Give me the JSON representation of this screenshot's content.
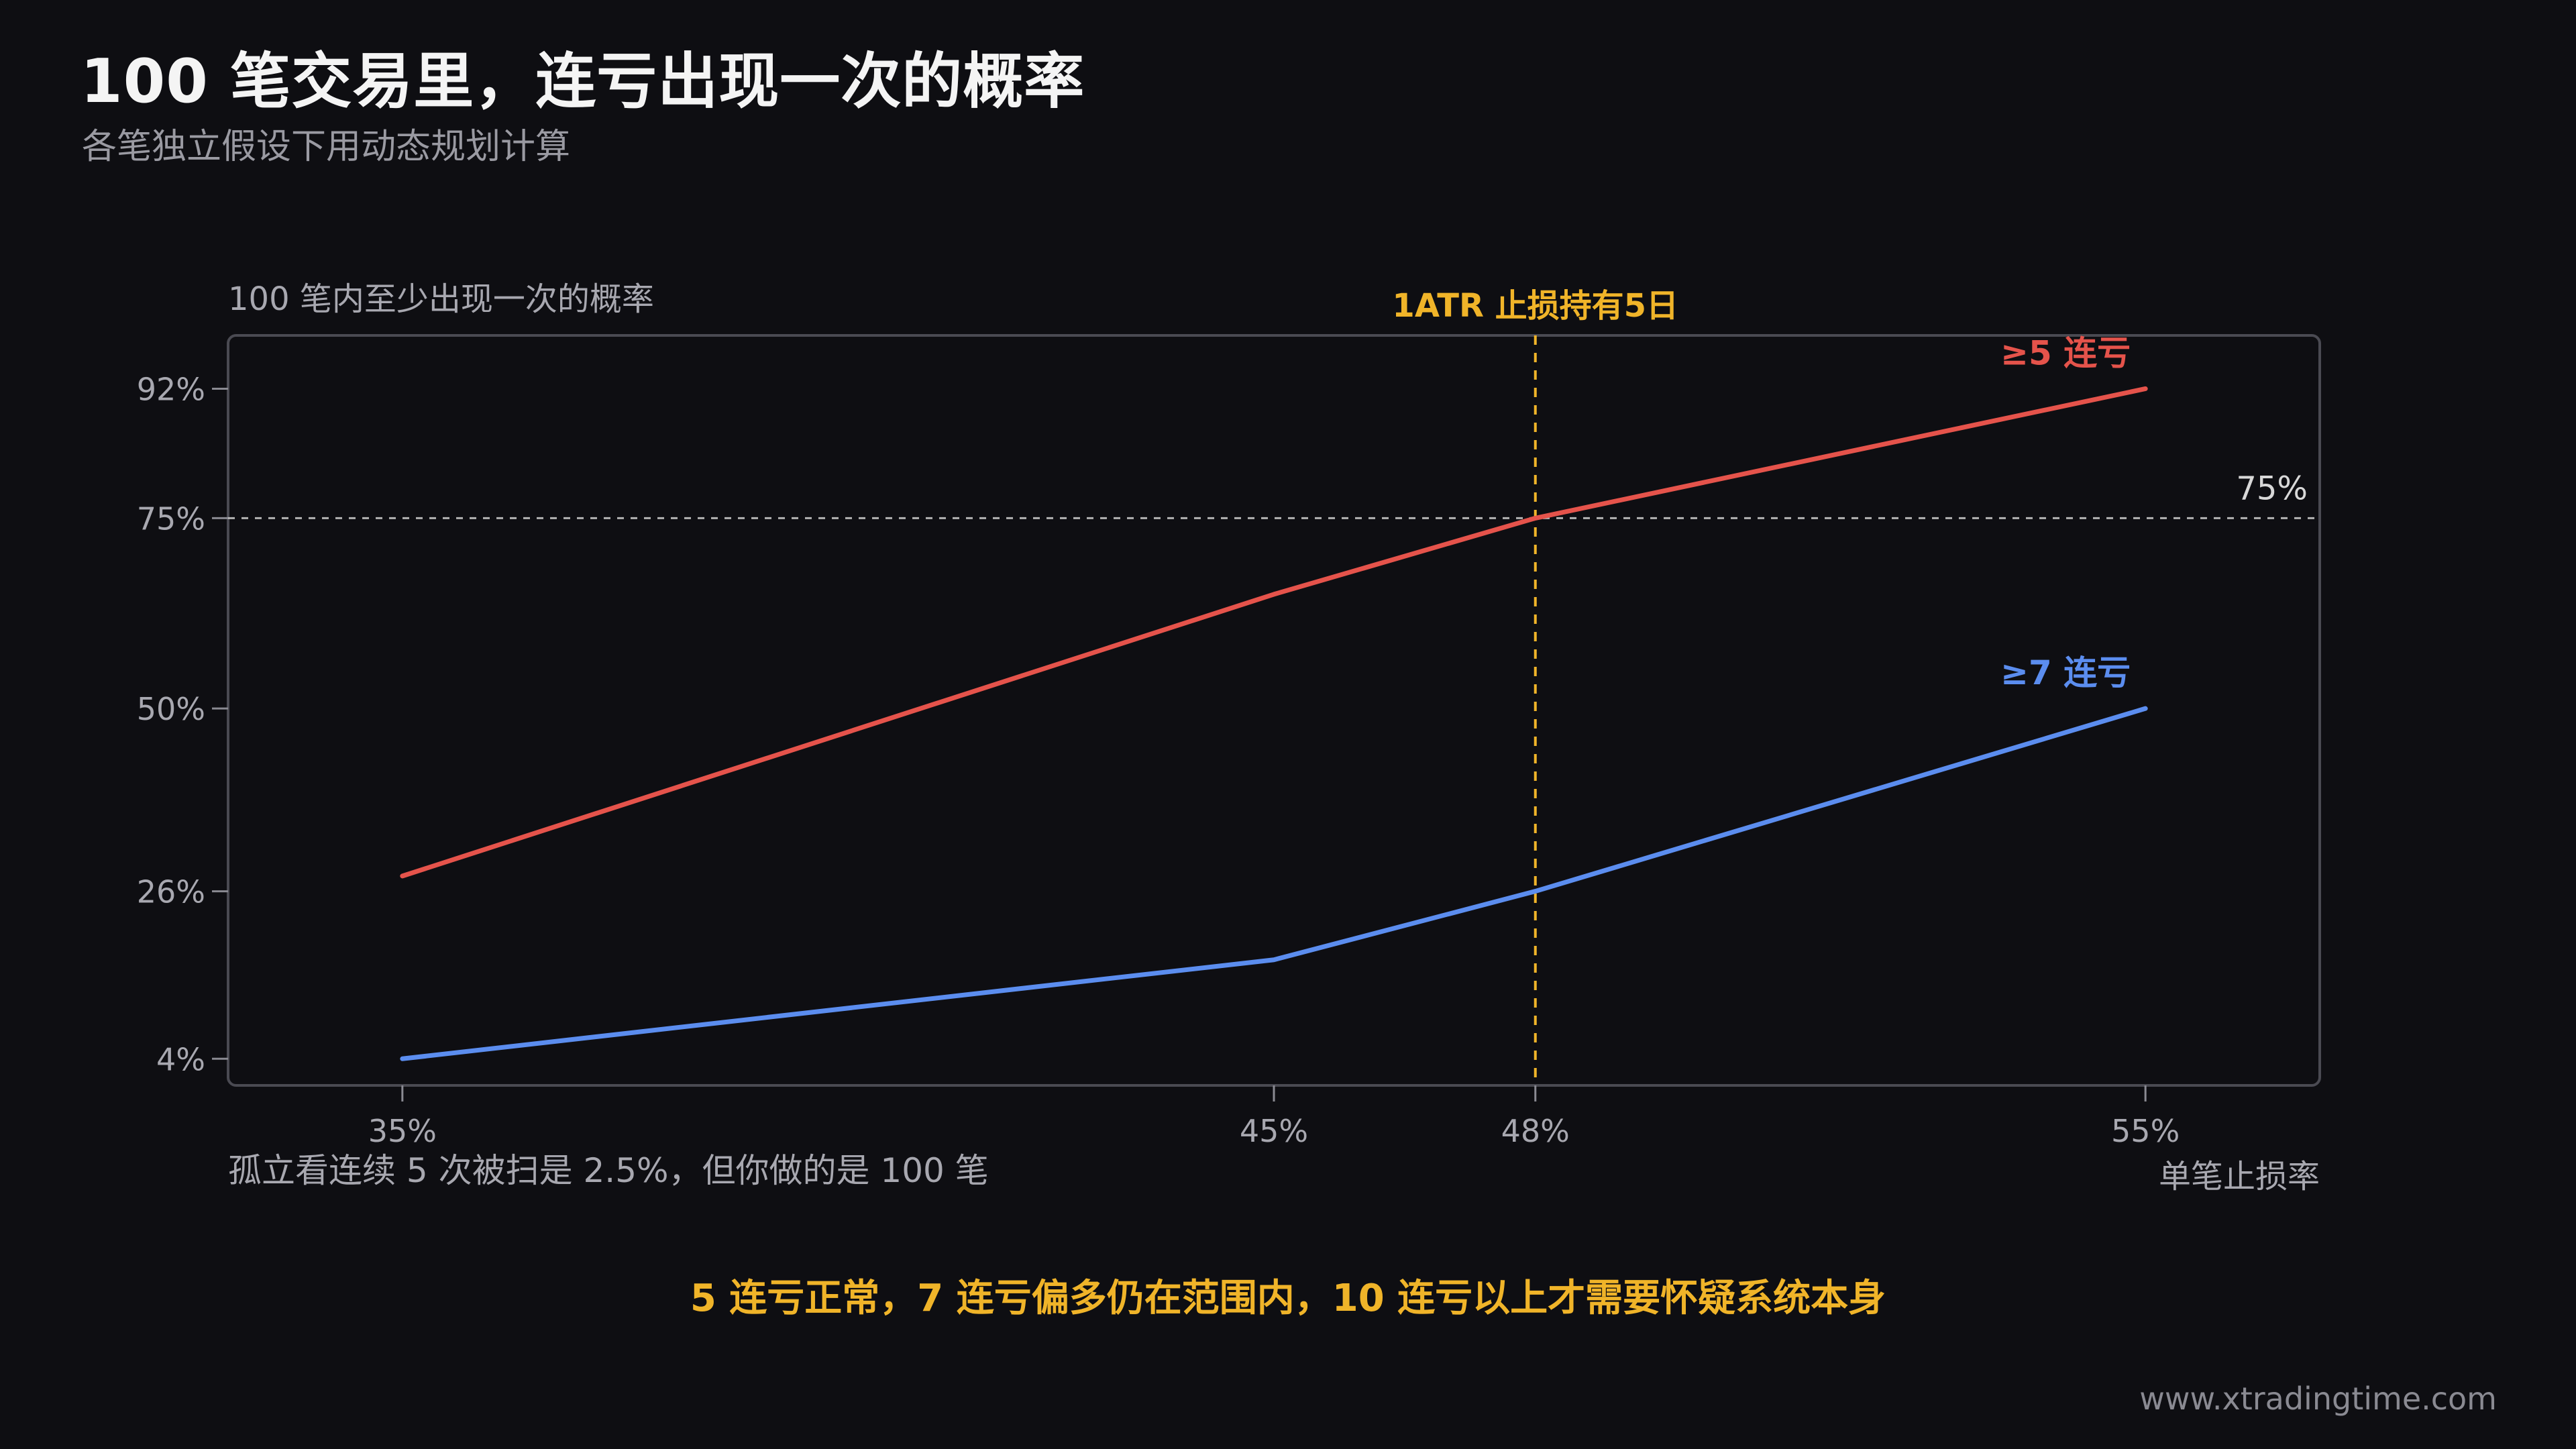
{
  "title": "100 笔交易里，连亏出现一次的概率",
  "subtitle": "各笔独立假设下用动态规划计算",
  "chart_data": {
    "type": "line",
    "ylabel": "100 笔内至少出现一次的概率",
    "xlabel": "单笔止损率",
    "x": [
      35,
      45,
      48,
      55
    ],
    "xticks": [
      "35%",
      "45%",
      "48%",
      "55%"
    ],
    "yticks": [
      4,
      26,
      50,
      75,
      92
    ],
    "ytick_labels": [
      "4%",
      "26%",
      "50%",
      "75%",
      "92%"
    ],
    "xlim": [
      33,
      57
    ],
    "ylim": [
      0.5,
      99
    ],
    "series": [
      {
        "name": "≥5 连亏",
        "values": [
          28,
          65,
          75,
          92
        ],
        "color": "#e5534b"
      },
      {
        "name": "≥7 连亏",
        "values": [
          4,
          17,
          26,
          50
        ],
        "color": "#5b8def"
      }
    ],
    "reference_lines": [
      {
        "axis": "y",
        "value": 75,
        "label": "75%",
        "color": "#d0d0d0",
        "style": "dotted"
      },
      {
        "axis": "x",
        "value": 48,
        "label": "1ATR 止损持有5日",
        "color": "#f0b429",
        "style": "dashed"
      }
    ]
  },
  "footnote": "孤立看连续 5 次被扫是 2.5%，但你做的是 100 笔",
  "conclusion": "5 连亏正常，7 连亏偏多仍在范围内，10 连亏以上才需要怀疑系统本身",
  "website": "www.xtradingtime.com",
  "colors": {
    "background": "#0e0e12",
    "accent": "#f0b429",
    "red": "#e5534b",
    "blue": "#5b8def"
  }
}
